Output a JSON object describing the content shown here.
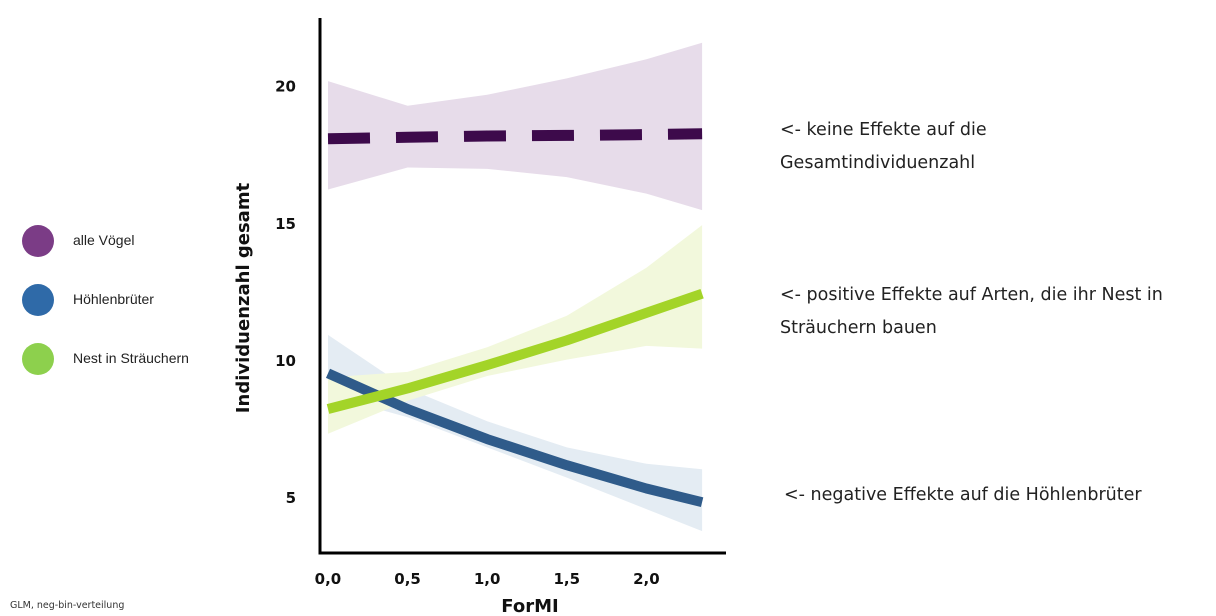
{
  "chart_data": {
    "type": "line",
    "title": "",
    "xlabel": "ForMI",
    "ylabel": "Individuenzahl gesamt",
    "xlim": [
      -0.05,
      2.5
    ],
    "ylim": [
      3,
      22.5
    ],
    "x_ticks": [
      "0,0",
      "0,5",
      "1,0",
      "1,5",
      "2,0"
    ],
    "x_tick_values": [
      0,
      0.5,
      1.0,
      1.5,
      2.0
    ],
    "y_ticks": [
      5,
      10,
      15,
      20
    ],
    "grid": false,
    "legend_position": "left",
    "series": [
      {
        "name": "alle Vögel",
        "color": "#3d0a4b",
        "band_color": "#e7dcea",
        "line_style": "dashed",
        "x": [
          0.0,
          0.5,
          1.0,
          1.5,
          2.0,
          2.35
        ],
        "y": [
          18.1,
          18.15,
          18.2,
          18.22,
          18.25,
          18.28
        ],
        "lower": [
          16.25,
          17.05,
          17.0,
          16.7,
          16.1,
          15.5
        ],
        "upper": [
          20.2,
          19.3,
          19.7,
          20.3,
          21.0,
          21.6
        ]
      },
      {
        "name": "Höhlenbrüter",
        "color": "#2f5b8a",
        "band_color": "#e4ecf3",
        "line_style": "solid",
        "x": [
          0.0,
          0.5,
          1.0,
          1.5,
          2.0,
          2.35
        ],
        "y": [
          9.55,
          8.25,
          7.15,
          6.2,
          5.35,
          4.85
        ],
        "lower": [
          8.75,
          7.95,
          6.85,
          5.75,
          4.6,
          3.8
        ],
        "upper": [
          10.95,
          9.0,
          7.8,
          6.85,
          6.25,
          6.05
        ]
      },
      {
        "name": "Nest in Sträuchern",
        "color": "#a3d428",
        "band_color": "#f2f8dc",
        "line_style": "solid",
        "x": [
          0.0,
          0.5,
          1.0,
          1.5,
          2.0,
          2.35
        ],
        "y": [
          8.25,
          9.0,
          9.85,
          10.75,
          11.75,
          12.45
        ],
        "lower": [
          7.35,
          8.55,
          9.45,
          10.05,
          10.55,
          10.45
        ],
        "upper": [
          9.4,
          9.6,
          10.5,
          11.65,
          13.4,
          14.95
        ]
      }
    ]
  },
  "legend": {
    "items": [
      {
        "label": "alle Vögel",
        "color": "#7b3c86"
      },
      {
        "label": "Höhlenbrüter",
        "color": "#2f6aa8"
      },
      {
        "label": "Nest in Sträuchern",
        "color": "#8dd04d"
      }
    ]
  },
  "annotations": {
    "top": "<- keine Effekte auf die\nGesamtindividuenzahl",
    "middle": "<- positive Effekte auf Arten, die ihr Nest in\nSträuchern bauen",
    "bottom": "<- negative Effekte auf die Höhlenbrüter"
  },
  "note": "GLM, neg-bin-verteilung"
}
